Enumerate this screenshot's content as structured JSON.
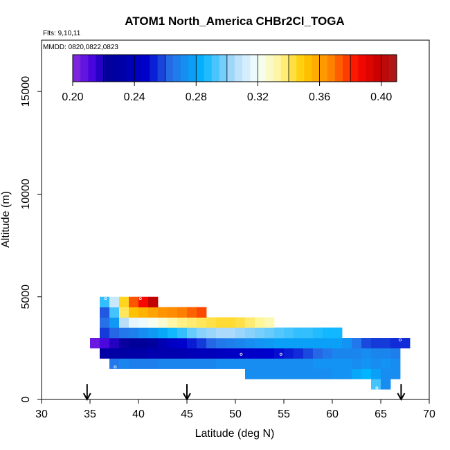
{
  "chart_data": {
    "type": "heatmap",
    "title": "ATOM1 North_America CHBr2Cl_TOGA",
    "flights_label": "Flts: 9,10,11",
    "mmdd_label": "MMDD: 0820,0822,0823",
    "xlabel": "Latitude (deg N)",
    "ylabel": "Altitude (m)",
    "xlim": [
      30,
      70
    ],
    "ylim": [
      0,
      17500
    ],
    "x_ticks": [
      30,
      35,
      40,
      45,
      50,
      55,
      60,
      65,
      70
    ],
    "y_ticks": [
      0,
      5000,
      10000,
      15000
    ],
    "colorbar": {
      "min": 0.2,
      "max": 0.41,
      "tick_values": [
        0.2,
        0.24,
        0.28,
        0.32,
        0.36,
        0.4
      ],
      "tick_labels": [
        "0.20",
        "0.24",
        "0.28",
        "0.32",
        "0.36",
        "0.40"
      ]
    },
    "arrows_latitude": [
      34.7,
      45,
      67.1
    ],
    "cell_size": {
      "lat": 1,
      "alt": 500
    },
    "rows": [
      {
        "alt": 500,
        "lat_start": 64,
        "values": [
          0.292,
          0.272
        ]
      },
      {
        "alt": 1000,
        "lat_start": 51,
        "values": [
          0.272,
          0.272,
          0.272,
          0.272,
          0.272,
          0.272,
          0.272,
          0.272,
          0.272,
          0.274,
          0.274,
          0.28,
          0.284,
          0.278,
          0.272,
          0.272
        ]
      },
      {
        "alt": 1500,
        "lat_start": 37,
        "values": [
          0.266,
          0.27,
          0.268,
          0.268,
          0.268,
          0.27,
          0.27,
          0.27,
          0.27,
          0.27,
          0.27,
          0.272,
          0.272,
          0.272,
          0.272,
          0.272,
          0.272,
          0.272,
          0.272,
          0.272,
          0.272,
          0.274,
          0.274,
          0.274,
          0.274,
          0.272,
          0.274,
          0.272,
          0.274,
          0.272
        ]
      },
      {
        "alt": 2000,
        "lat_start": 36,
        "values": [
          0.23,
          0.23,
          0.23,
          0.232,
          0.232,
          0.234,
          0.234,
          0.234,
          0.236,
          0.238,
          0.24,
          0.24,
          0.242,
          0.244,
          0.244,
          0.246,
          0.246,
          0.248,
          0.25,
          0.252,
          0.254,
          0.258,
          0.262,
          0.266,
          0.27,
          0.27,
          0.27,
          0.272,
          0.27,
          0.27,
          0.268
        ]
      },
      {
        "alt": 2500,
        "lat_start": 35,
        "values": [
          0.206,
          0.212,
          0.218,
          0.222,
          0.224,
          0.224,
          0.226,
          0.236,
          0.244,
          0.248,
          0.252,
          0.256,
          0.262,
          0.266,
          0.268,
          0.27,
          0.272,
          0.274,
          0.276,
          0.278,
          0.278,
          0.278,
          0.278,
          0.278,
          0.278,
          0.278,
          0.274,
          0.266,
          0.258,
          0.256,
          0.256,
          0.254,
          0.254
        ]
      },
      {
        "alt": 3000,
        "lat_start": 36,
        "values": [
          0.256,
          0.262,
          0.266,
          0.268,
          0.272,
          0.276,
          0.28,
          0.286,
          0.29,
          0.296,
          0.3,
          0.302,
          0.304,
          0.304,
          0.302,
          0.3,
          0.298,
          0.296,
          0.294,
          0.292,
          0.29,
          0.29,
          0.288,
          0.286,
          0.286
        ]
      },
      {
        "alt": 3500,
        "lat_start": 36,
        "values": [
          0.264,
          0.276,
          0.306,
          0.316,
          0.318,
          0.322,
          0.326,
          0.332,
          0.336,
          0.338,
          0.34,
          0.342,
          0.344,
          0.344,
          0.342,
          0.338,
          0.334,
          0.33
        ]
      },
      {
        "alt": 4000,
        "lat_start": 36,
        "values": [
          0.26,
          0.292,
          0.34,
          0.352,
          0.356,
          0.36,
          0.364,
          0.366,
          0.368,
          0.372,
          0.376
        ]
      },
      {
        "alt": 4500,
        "lat_start": 36,
        "values": [
          0.29,
          0.31,
          0.346,
          0.374,
          0.386,
          0.4
        ]
      }
    ],
    "sample_points": [
      {
        "lat": 34.8,
        "alt": 2770
      },
      {
        "lat": 36.6,
        "alt": 4920
      },
      {
        "lat": 37.6,
        "alt": 1580
      },
      {
        "lat": 40.2,
        "alt": 4920
      },
      {
        "lat": 50.6,
        "alt": 2200
      },
      {
        "lat": 54.7,
        "alt": 2200
      },
      {
        "lat": 64.6,
        "alt": 560
      },
      {
        "lat": 67.0,
        "alt": 2900
      }
    ]
  }
}
